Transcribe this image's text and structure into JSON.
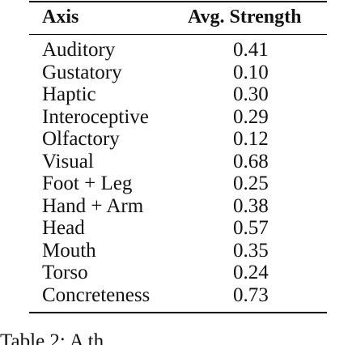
{
  "table": {
    "headers": {
      "axis": "Axis",
      "strength": "Avg. Strength"
    },
    "rows": [
      {
        "axis": "Auditory",
        "value": "0.41"
      },
      {
        "axis": "Gustatory",
        "value": "0.10"
      },
      {
        "axis": "Haptic",
        "value": "0.30"
      },
      {
        "axis": "Interoceptive",
        "value": "0.29"
      },
      {
        "axis": "Olfactory",
        "value": "0.12"
      },
      {
        "axis": "Visual",
        "value": "0.68"
      },
      {
        "axis": "Foot + Leg",
        "value": "0.25"
      },
      {
        "axis": "Hand + Arm",
        "value": "0.38"
      },
      {
        "axis": "Head",
        "value": "0.57"
      },
      {
        "axis": "Mouth",
        "value": "0.35"
      },
      {
        "axis": "Torso",
        "value": "0.24"
      },
      {
        "axis": "Concreteness",
        "value": "0.73"
      }
    ]
  },
  "caption": "Table 2:  A                              th"
}
